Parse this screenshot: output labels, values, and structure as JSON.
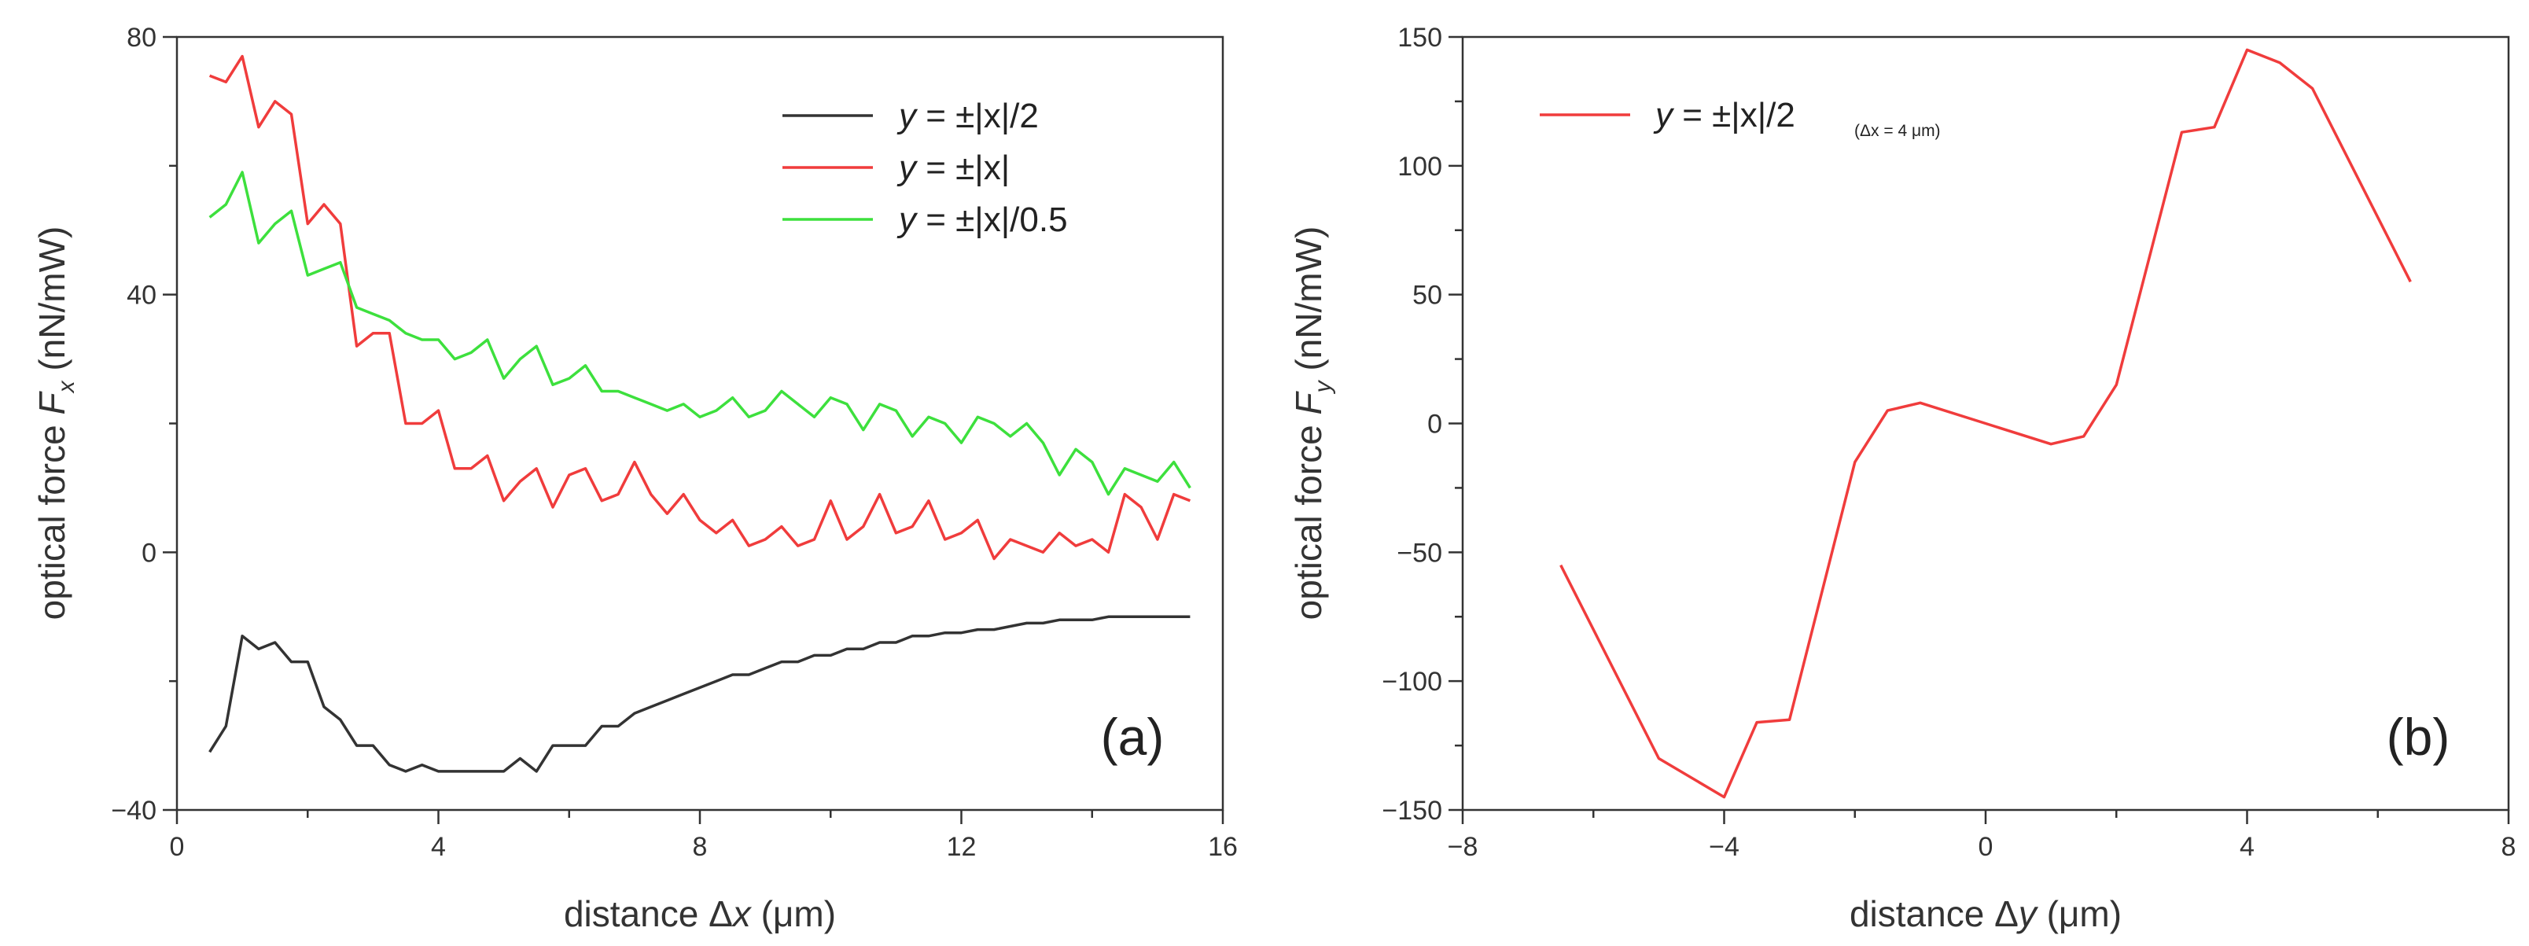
{
  "chart_data": [
    {
      "type": "line",
      "panel_label": "(a)",
      "xlabel": {
        "prefix": "distance Δ",
        "var": "x",
        "suffix": " (μm)"
      },
      "ylabel": {
        "prefix": "optical force ",
        "var": "F",
        "sub": "x",
        "suffix": " (nN/mW)"
      },
      "xlim": [
        0,
        16
      ],
      "ylim": [
        -40,
        80
      ],
      "xticks": [
        0,
        4,
        8,
        12,
        16
      ],
      "yticks": [
        -40,
        0,
        40,
        80
      ],
      "xminor": [
        2,
        6,
        10,
        14
      ],
      "yminor": [
        -20,
        20,
        60
      ],
      "legend_position": "top-right",
      "series": [
        {
          "name": "y = ±|x|/2",
          "legend_pre": "y",
          "legend_post": " = ±|x|/2",
          "color": "#333333",
          "x": [
            0.5,
            0.75,
            1.0,
            1.25,
            1.5,
            1.75,
            2.0,
            2.25,
            2.5,
            2.75,
            3.0,
            3.25,
            3.5,
            3.75,
            4.0,
            4.25,
            4.5,
            4.75,
            5.0,
            5.25,
            5.5,
            5.75,
            6.0,
            6.25,
            6.5,
            6.75,
            7.0,
            7.25,
            7.5,
            7.75,
            8.0,
            8.25,
            8.5,
            8.75,
            9.0,
            9.25,
            9.5,
            9.75,
            10.0,
            10.25,
            10.5,
            10.75,
            11.0,
            11.25,
            11.5,
            11.75,
            12.0,
            12.25,
            12.5,
            12.75,
            13.0,
            13.25,
            13.5,
            13.75,
            14.0,
            14.25,
            14.5,
            14.75,
            15.0,
            15.25,
            15.5
          ],
          "y": [
            -31,
            -27,
            -13,
            -15,
            -14,
            -17,
            -17,
            -24,
            -26,
            -30,
            -30,
            -33,
            -34,
            -33,
            -34,
            -34,
            -34,
            -34,
            -34,
            -32,
            -34,
            -30,
            -30,
            -30,
            -27,
            -27,
            -25,
            -24,
            -23,
            -22,
            -21,
            -20,
            -19,
            -19,
            -18,
            -17,
            -17,
            -16,
            -16,
            -15,
            -15,
            -14,
            -14,
            -13,
            -13,
            -12.5,
            -12.5,
            -12,
            -12,
            -11.5,
            -11,
            -11,
            -10.5,
            -10.5,
            -10.5,
            -10,
            -10,
            -10,
            -10,
            -10,
            -10
          ]
        },
        {
          "name": "y = ±|x|",
          "legend_pre": "y",
          "legend_post": " = ±|x|",
          "color": "#f03c3c",
          "x": [
            0.5,
            0.75,
            1.0,
            1.25,
            1.5,
            1.75,
            2.0,
            2.25,
            2.5,
            2.75,
            3.0,
            3.25,
            3.5,
            3.75,
            4.0,
            4.25,
            4.5,
            4.75,
            5.0,
            5.25,
            5.5,
            5.75,
            6.0,
            6.25,
            6.5,
            6.75,
            7.0,
            7.25,
            7.5,
            7.75,
            8.0,
            8.25,
            8.5,
            8.75,
            9.0,
            9.25,
            9.5,
            9.75,
            10.0,
            10.25,
            10.5,
            10.75,
            11.0,
            11.25,
            11.5,
            11.75,
            12.0,
            12.25,
            12.5,
            12.75,
            13.0,
            13.25,
            13.5,
            13.75,
            14.0,
            14.25,
            14.5,
            14.75,
            15.0,
            15.25,
            15.5
          ],
          "y": [
            74,
            73,
            77,
            66,
            70,
            68,
            51,
            54,
            51,
            32,
            34,
            34,
            20,
            20,
            22,
            13,
            13,
            15,
            8,
            11,
            13,
            7,
            12,
            13,
            8,
            9,
            14,
            9,
            6,
            9,
            5,
            3,
            5,
            1,
            2,
            4,
            1,
            2,
            8,
            2,
            4,
            9,
            3,
            4,
            8,
            2,
            3,
            5,
            -1,
            2,
            1,
            0,
            3,
            1,
            2,
            0,
            9,
            7,
            2,
            9,
            8
          ]
        },
        {
          "name": "y = ±|x|/0.5",
          "legend_pre": "y",
          "legend_post": " = ±|x|/0.5",
          "color": "#3de03d",
          "x": [
            0.5,
            0.75,
            1.0,
            1.25,
            1.5,
            1.75,
            2.0,
            2.25,
            2.5,
            2.75,
            3.0,
            3.25,
            3.5,
            3.75,
            4.0,
            4.25,
            4.5,
            4.75,
            5.0,
            5.25,
            5.5,
            5.75,
            6.0,
            6.25,
            6.5,
            6.75,
            7.0,
            7.25,
            7.5,
            7.75,
            8.0,
            8.25,
            8.5,
            8.75,
            9.0,
            9.25,
            9.5,
            9.75,
            10.0,
            10.25,
            10.5,
            10.75,
            11.0,
            11.25,
            11.5,
            11.75,
            12.0,
            12.25,
            12.5,
            12.75,
            13.0,
            13.25,
            13.5,
            13.75,
            14.0,
            14.25,
            14.5,
            14.75,
            15.0,
            15.25,
            15.5
          ],
          "y": [
            52,
            54,
            59,
            48,
            51,
            53,
            43,
            44,
            45,
            38,
            37,
            36,
            34,
            33,
            33,
            30,
            31,
            33,
            27,
            30,
            32,
            26,
            27,
            29,
            25,
            25,
            24,
            23,
            22,
            23,
            21,
            22,
            24,
            21,
            22,
            25,
            23,
            21,
            24,
            23,
            19,
            23,
            22,
            18,
            21,
            20,
            17,
            21,
            20,
            18,
            20,
            17,
            12,
            16,
            14,
            9,
            13,
            12,
            11,
            14,
            10
          ]
        }
      ]
    },
    {
      "type": "line",
      "panel_label": "(b)",
      "xlabel": {
        "prefix": "distance Δ",
        "var": "y",
        "suffix": " (μm)"
      },
      "ylabel": {
        "prefix": "optical force ",
        "var": "F",
        "sub": "y",
        "suffix": " (nN/mW)"
      },
      "xlim": [
        -8,
        8
      ],
      "ylim": [
        -150,
        150
      ],
      "xticks": [
        -8,
        -4,
        0,
        4,
        8
      ],
      "yticks": [
        -150,
        -100,
        -50,
        0,
        50,
        100,
        150
      ],
      "xminor": [
        -6,
        -2,
        2,
        6
      ],
      "yminor": [
        -125,
        -75,
        -25,
        25,
        75,
        125
      ],
      "legend_position": "top-left",
      "series": [
        {
          "name": "y = ±|x|/2",
          "legend_pre": "y",
          "legend_post": " = ±|x|/2",
          "legend_note": "(Δx = 4 μm)",
          "color": "#f03c3c",
          "x": [
            -6.5,
            -5,
            -4,
            -3.5,
            -3,
            -2,
            -1.5,
            -1,
            0,
            1,
            1.5,
            2,
            3,
            3.5,
            4,
            4.5,
            5,
            6.5
          ],
          "y": [
            -55,
            -130,
            -145,
            -116,
            -115,
            -15,
            5,
            8,
            0,
            -8,
            -5,
            15,
            113,
            115,
            145,
            140,
            130,
            55
          ]
        }
      ]
    }
  ]
}
